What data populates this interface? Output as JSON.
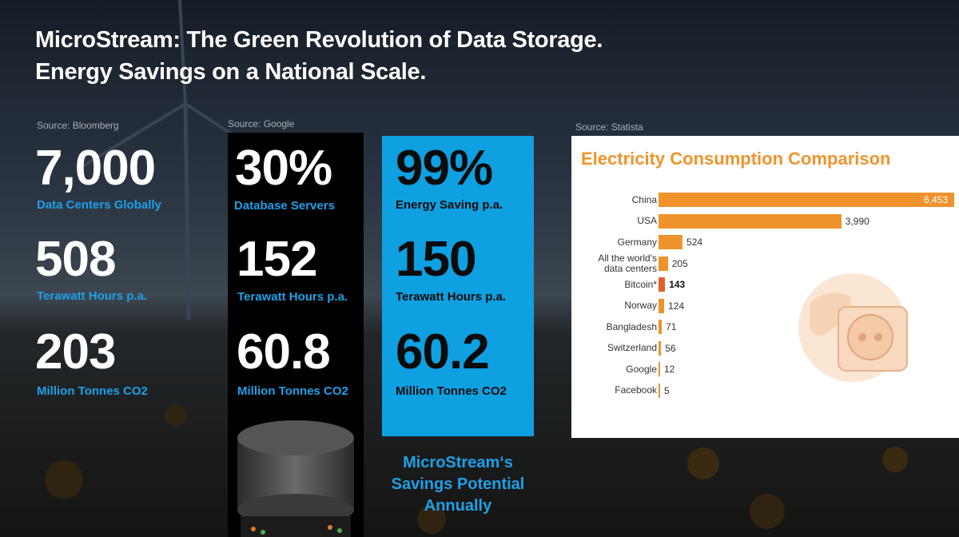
{
  "title": {
    "line1": "MicroStream: The Green Revolution of Data Storage.",
    "line2": "Energy Savings on a National Scale."
  },
  "col1": {
    "source": "Source:  Bloomberg",
    "stat1_value": "7,000",
    "stat1_label": "Data Centers Globally",
    "stat2_value": "508",
    "stat2_label": "Terawatt Hours p.a.",
    "stat3_value": "203",
    "stat3_label": "Million Tonnes CO2"
  },
  "col2": {
    "source": "Source: Google",
    "stat1_value": "30%",
    "stat1_label": "Database Servers",
    "stat2_value": "152",
    "stat2_label": "Terawatt Hours p.a.",
    "stat3_value": "60.8",
    "stat3_label": "Million Tonnes CO2"
  },
  "col3": {
    "stat1_value": "99%",
    "stat1_label": "Energy Saving p.a.",
    "stat2_value": "150",
    "stat2_label": "Terawatt Hours p.a.",
    "stat3_value": "60.2",
    "stat3_label": "Million Tonnes CO2",
    "caption_line1": "MicroStream‘s",
    "caption_line2": "Savings Potential",
    "caption_line3": "Annually"
  },
  "chart_source": "Source: Statista",
  "colors": {
    "accent_blue": "#0ea0e0",
    "chart_orange": "#f0932b",
    "chart_highlight": "#e0622a"
  },
  "chart_data": {
    "type": "bar",
    "orientation": "horizontal",
    "title": "Electricity Consumption Comparison",
    "categories": [
      "China",
      "USA",
      "Germany",
      "All the world's data centers",
      "Bitcoin*",
      "Norway",
      "Bangladesh",
      "Switzerland",
      "Google",
      "Facebook"
    ],
    "category_lines": [
      [
        "China"
      ],
      [
        "USA"
      ],
      [
        "Germany"
      ],
      [
        "All the world's",
        "data centers"
      ],
      [
        "Bitcoin*"
      ],
      [
        "Norway"
      ],
      [
        "Bangladesh"
      ],
      [
        "Switzerland"
      ],
      [
        "Google"
      ],
      [
        "Facebook"
      ]
    ],
    "values": [
      6453,
      3990,
      524,
      205,
      143,
      124,
      71,
      56,
      12,
      5
    ],
    "value_labels": [
      "6,453",
      "3,990",
      "524",
      "205",
      "143",
      "124",
      "71",
      "56",
      "12",
      "5"
    ],
    "highlight": "Bitcoin*",
    "xlim": [
      0,
      6453
    ],
    "grid": false,
    "legend": "none"
  }
}
